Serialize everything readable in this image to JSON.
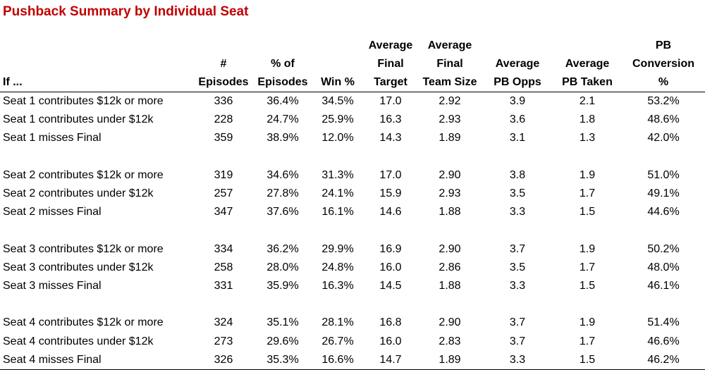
{
  "title": "Pushback Summary by Individual Seat",
  "header": {
    "if_label": "If ...",
    "col1": [
      "#",
      "Episodes"
    ],
    "col2": [
      "% of",
      "Episodes"
    ],
    "col3": [
      "Win %"
    ],
    "col4": [
      "Average",
      "Final",
      "Target"
    ],
    "col5": [
      "Average",
      "Final",
      "Team Size"
    ],
    "col6": [
      "Average",
      "PB Opps"
    ],
    "col7": [
      "Average",
      "PB Taken"
    ],
    "col8": [
      "PB",
      "Conversion",
      "%"
    ]
  },
  "groups": [
    {
      "rows": [
        {
          "label": "Seat 1 contributes $12k or more",
          "values": [
            "336",
            "36.4%",
            "34.5%",
            "17.0",
            "2.92",
            "3.9",
            "2.1",
            "53.2%"
          ]
        },
        {
          "label": "Seat 1 contributes under $12k",
          "values": [
            "228",
            "24.7%",
            "25.9%",
            "16.3",
            "2.93",
            "3.6",
            "1.8",
            "48.6%"
          ]
        },
        {
          "label": "Seat 1 misses Final",
          "values": [
            "359",
            "38.9%",
            "12.0%",
            "14.3",
            "1.89",
            "3.1",
            "1.3",
            "42.0%"
          ]
        }
      ]
    },
    {
      "rows": [
        {
          "label": "Seat 2 contributes $12k or more",
          "values": [
            "319",
            "34.6%",
            "31.3%",
            "17.0",
            "2.90",
            "3.8",
            "1.9",
            "51.0%"
          ]
        },
        {
          "label": "Seat 2 contributes under $12k",
          "values": [
            "257",
            "27.8%",
            "24.1%",
            "15.9",
            "2.93",
            "3.5",
            "1.7",
            "49.1%"
          ]
        },
        {
          "label": "Seat 2 misses Final",
          "values": [
            "347",
            "37.6%",
            "16.1%",
            "14.6",
            "1.88",
            "3.3",
            "1.5",
            "44.6%"
          ]
        }
      ]
    },
    {
      "rows": [
        {
          "label": "Seat 3 contributes $12k or more",
          "values": [
            "334",
            "36.2%",
            "29.9%",
            "16.9",
            "2.90",
            "3.7",
            "1.9",
            "50.2%"
          ]
        },
        {
          "label": "Seat 3 contributes under $12k",
          "values": [
            "258",
            "28.0%",
            "24.8%",
            "16.0",
            "2.86",
            "3.5",
            "1.7",
            "48.0%"
          ]
        },
        {
          "label": "Seat 3 misses Final",
          "values": [
            "331",
            "35.9%",
            "16.3%",
            "14.5",
            "1.88",
            "3.3",
            "1.5",
            "46.1%"
          ]
        }
      ]
    },
    {
      "rows": [
        {
          "label": "Seat 4 contributes $12k or more",
          "values": [
            "324",
            "35.1%",
            "28.1%",
            "16.8",
            "2.90",
            "3.7",
            "1.9",
            "51.4%"
          ]
        },
        {
          "label": "Seat 4 contributes under $12k",
          "values": [
            "273",
            "29.6%",
            "26.7%",
            "16.0",
            "2.83",
            "3.7",
            "1.7",
            "46.6%"
          ]
        },
        {
          "label": "Seat 4 misses Final",
          "values": [
            "326",
            "35.3%",
            "16.6%",
            "14.7",
            "1.89",
            "3.3",
            "1.5",
            "46.2%"
          ]
        }
      ]
    }
  ],
  "colors": {
    "title": "#c00000",
    "text": "#000000",
    "background": "#ffffff"
  }
}
